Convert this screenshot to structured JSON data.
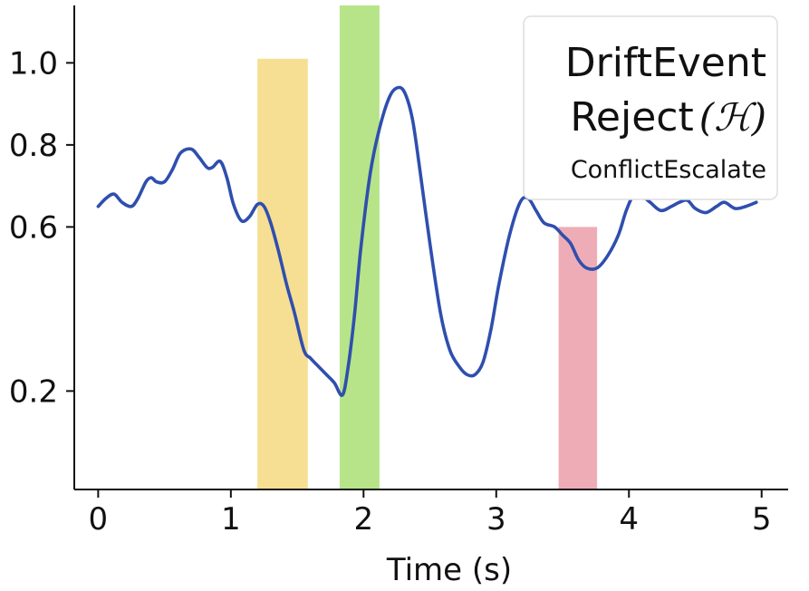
{
  "chart_data": {
    "type": "line",
    "xlabel": "Time (s)",
    "ylabel": "",
    "xlim": [
      -0.18,
      5.2
    ],
    "ylim": [
      -0.04,
      1.14
    ],
    "x_ticks": [
      0,
      1,
      2,
      3,
      4,
      5
    ],
    "y_ticks": [
      {
        "value": 0.2,
        "label": "0.2"
      },
      {
        "value": 0.6,
        "label": "0.6"
      },
      {
        "value": 0.8,
        "label": "0.8"
      },
      {
        "value": 1.0,
        "label": "1.0"
      }
    ],
    "regions": [
      {
        "x0": 1.2,
        "x1": 1.58,
        "y0": -0.04,
        "y1": 1.01,
        "color": "#f3d36f"
      },
      {
        "x0": 1.82,
        "x1": 2.12,
        "y0": -0.04,
        "y1": 1.14,
        "color": "#9fdb62"
      },
      {
        "x0": 3.47,
        "x1": 3.76,
        "y0": -0.04,
        "y1": 0.6,
        "color": "#e8929e"
      }
    ],
    "series": [
      {
        "color": "#2f4fae",
        "x": [
          0.0,
          0.06,
          0.12,
          0.18,
          0.25,
          0.3,
          0.36,
          0.4,
          0.44,
          0.5,
          0.56,
          0.62,
          0.7,
          0.76,
          0.82,
          0.86,
          0.92,
          0.97,
          1.02,
          1.08,
          1.14,
          1.2,
          1.25,
          1.3,
          1.36,
          1.42,
          1.48,
          1.55,
          1.6,
          1.66,
          1.72,
          1.78,
          1.84,
          1.88,
          1.93,
          1.98,
          2.05,
          2.12,
          2.2,
          2.27,
          2.32,
          2.37,
          2.42,
          2.5,
          2.58,
          2.65,
          2.72,
          2.78,
          2.84,
          2.9,
          2.96,
          3.02,
          3.1,
          3.18,
          3.24,
          3.3,
          3.36,
          3.44,
          3.5,
          3.56,
          3.62,
          3.68,
          3.76,
          3.84,
          3.92,
          3.98,
          4.04,
          4.1,
          4.16,
          4.24,
          4.32,
          4.38,
          4.44,
          4.5,
          4.58,
          4.66,
          4.72,
          4.8,
          4.88,
          4.96
        ],
        "y": [
          0.65,
          0.67,
          0.68,
          0.66,
          0.65,
          0.67,
          0.71,
          0.72,
          0.71,
          0.71,
          0.74,
          0.78,
          0.79,
          0.77,
          0.745,
          0.745,
          0.76,
          0.72,
          0.655,
          0.615,
          0.625,
          0.655,
          0.65,
          0.61,
          0.54,
          0.46,
          0.39,
          0.3,
          0.28,
          0.26,
          0.24,
          0.22,
          0.19,
          0.25,
          0.38,
          0.55,
          0.73,
          0.84,
          0.92,
          0.94,
          0.92,
          0.86,
          0.75,
          0.56,
          0.39,
          0.3,
          0.26,
          0.24,
          0.24,
          0.27,
          0.35,
          0.46,
          0.58,
          0.66,
          0.67,
          0.64,
          0.61,
          0.6,
          0.58,
          0.56,
          0.52,
          0.5,
          0.5,
          0.53,
          0.58,
          0.64,
          0.68,
          0.675,
          0.66,
          0.64,
          0.65,
          0.66,
          0.665,
          0.645,
          0.635,
          0.65,
          0.66,
          0.645,
          0.65,
          0.66
        ]
      }
    ],
    "legend": {
      "placement": "top-right",
      "line1": "DriftEvent",
      "line2_text": "Reject",
      "line2_symbol": "(ℋ)",
      "line3": "ConflictEscalate"
    }
  }
}
